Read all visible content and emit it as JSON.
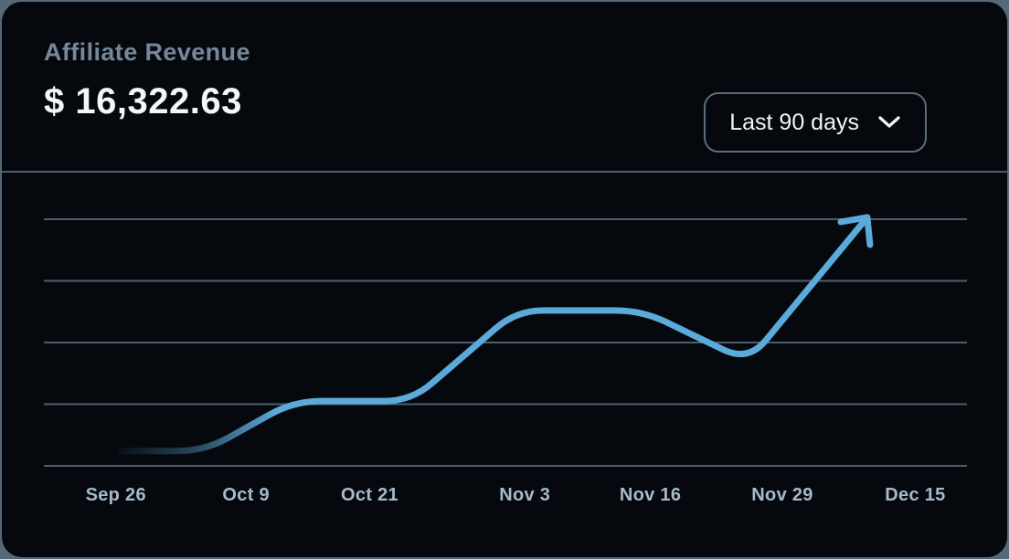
{
  "card": {
    "title": "Affiliate Revenue",
    "value": "$ 16,322.63",
    "range_selector": {
      "label": "Last 90 days",
      "icon": "chevron-down-icon"
    }
  },
  "colors": {
    "page_background": "#546877",
    "card_background": "#05090e",
    "title_text": "#76879a",
    "value_text": "#f4f6f8",
    "grid_line": "#4c5e6c",
    "series_line": "#5caad9",
    "axis_label": "#a6bac8",
    "button_border": "#596d7c",
    "button_text": "#f2f5f7"
  },
  "chart_data": {
    "type": "line",
    "title": "Affiliate Revenue",
    "xlabel": "",
    "ylabel": "",
    "legend": "none",
    "grid": "horizontal",
    "x_tick_labels": [
      "Sep 26",
      "Oct 9",
      "Oct 21",
      "Nov 3",
      "Nov 16",
      "Nov 29",
      "Dec 15"
    ],
    "x_tick_positions": [
      0.078,
      0.219,
      0.353,
      0.521,
      0.657,
      0.8,
      0.944
    ],
    "y_axis": {
      "tick_labels_visible": false,
      "gridline_count": 5,
      "value_range": [
        0,
        4
      ],
      "note": "values in unlabeled gridline units, 0 = bottom gridline"
    },
    "series": [
      {
        "name": "Affiliate Revenue",
        "style": {
          "fade_in_start": true,
          "arrowhead_end": true
        },
        "points": [
          {
            "x": 0.083,
            "y": 0.24
          },
          {
            "x": 0.174,
            "y": 0.24
          },
          {
            "x": 0.271,
            "y": 1.05
          },
          {
            "x": 0.398,
            "y": 1.05
          },
          {
            "x": 0.512,
            "y": 2.52
          },
          {
            "x": 0.648,
            "y": 2.52
          },
          {
            "x": 0.763,
            "y": 1.69
          },
          {
            "x": 0.892,
            "y": 4.03
          }
        ]
      }
    ],
    "arrowhead": {
      "barb_offsets": [
        {
          "dx": -29,
          "dy": 5
        },
        {
          "dx": 3,
          "dy": 30
        }
      ]
    }
  }
}
